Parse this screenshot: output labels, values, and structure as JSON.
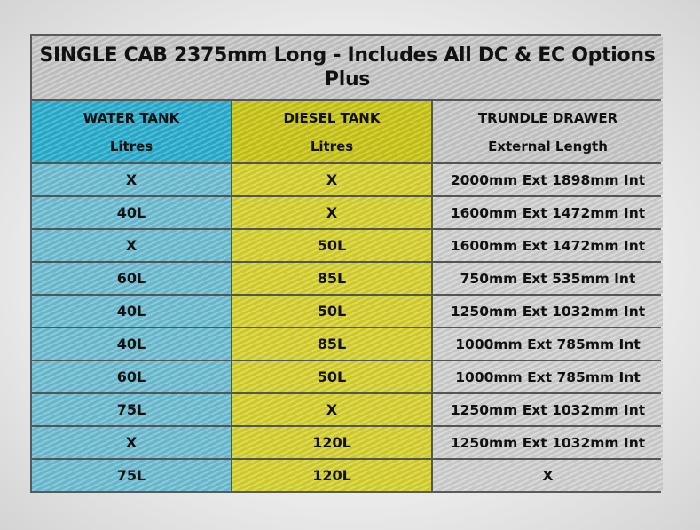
{
  "title": {
    "line1": "SINGLE CAB 2375mm Long - Includes All DC & EC Options",
    "line2": "Plus"
  },
  "headers": [
    {
      "label": "WATER TANK",
      "sub": "Litres",
      "color": "#2aaed0"
    },
    {
      "label": "DIESEL TANK",
      "sub": "Litres",
      "color": "#cbc716"
    },
    {
      "label": "TRUNDLE DRAWER",
      "sub": "External Length",
      "color": "#c9c9c9"
    }
  ],
  "rows": [
    [
      "X",
      "X",
      "2000mm Ext 1898mm Int"
    ],
    [
      "40L",
      "X",
      "1600mm Ext 1472mm Int"
    ],
    [
      "X",
      "50L",
      "1600mm Ext 1472mm Int"
    ],
    [
      "60L",
      "85L",
      "750mm Ext 535mm Int"
    ],
    [
      "40L",
      "50L",
      "1250mm Ext 1032mm Int"
    ],
    [
      "40L",
      "85L",
      "1000mm Ext 785mm Int"
    ],
    [
      "60L",
      "50L",
      "1000mm Ext 785mm Int"
    ],
    [
      "75L",
      "X",
      "1250mm Ext 1032mm Int"
    ],
    [
      "X",
      "120L",
      "1250mm Ext 1032mm Int"
    ],
    [
      "75L",
      "120L",
      "X"
    ]
  ]
}
